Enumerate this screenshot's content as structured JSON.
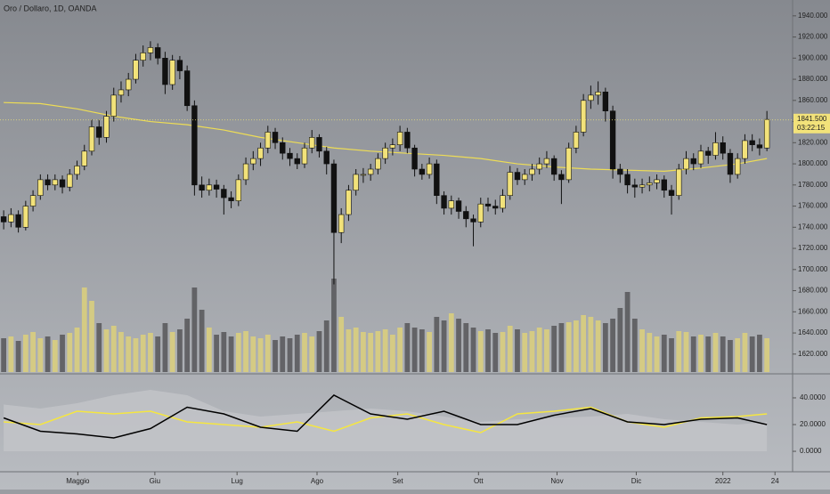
{
  "chart_data": [
    {
      "type": "candlestick",
      "title": "Oro / Dollaro, 1D, OANDA",
      "xlim": [
        -0.5,
        107.5
      ],
      "xticks": [
        {
          "value": 10.1,
          "label": "Maggio"
        },
        {
          "value": 20.6,
          "label": "Giu"
        },
        {
          "value": 31.8,
          "label": "Lug"
        },
        {
          "value": 42.7,
          "label": "Ago"
        },
        {
          "value": 53.7,
          "label": "Set"
        },
        {
          "value": 64.7,
          "label": "Ott"
        },
        {
          "value": 75.4,
          "label": "Nov"
        },
        {
          "value": 86.2,
          "label": "Dic"
        },
        {
          "value": 98,
          "label": "2022"
        },
        {
          "value": 105.1,
          "label": "24"
        }
      ],
      "ylim": [
        1603,
        1955
      ],
      "yticks": [
        {
          "value": 1620,
          "label": "1620.000"
        },
        {
          "value": 1640,
          "label": "1640.000"
        },
        {
          "value": 1660,
          "label": "1660.000"
        },
        {
          "value": 1680,
          "label": "1680.000"
        },
        {
          "value": 1700,
          "label": "1700.000"
        },
        {
          "value": 1720,
          "label": "1720.000"
        },
        {
          "value": 1740,
          "label": "1740.000"
        },
        {
          "value": 1760,
          "label": "1760.000"
        },
        {
          "value": 1780,
          "label": "1780.000"
        },
        {
          "value": 1800,
          "label": "1800.000"
        },
        {
          "value": 1820,
          "label": "1820.000"
        },
        {
          "value": 1840,
          "label": "1840.000"
        },
        {
          "value": 1860,
          "label": "1860.000"
        },
        {
          "value": 1880,
          "label": "1880.000"
        },
        {
          "value": 1900,
          "label": "1900.000"
        },
        {
          "value": 1920,
          "label": "1920.000"
        },
        {
          "value": 1940,
          "label": "1940.000"
        }
      ],
      "up_color": "#f2e27a",
      "down_color": "#111111",
      "candles": [
        [
          1750,
          1756,
          1738,
          1745
        ],
        [
          1745,
          1758,
          1740,
          1752
        ],
        [
          1752,
          1756,
          1735,
          1740
        ],
        [
          1740,
          1765,
          1737,
          1760
        ],
        [
          1760,
          1775,
          1755,
          1770
        ],
        [
          1770,
          1790,
          1766,
          1785
        ],
        [
          1785,
          1790,
          1775,
          1780
        ],
        [
          1780,
          1790,
          1775,
          1785
        ],
        [
          1785,
          1789,
          1772,
          1778
        ],
        [
          1778,
          1795,
          1774,
          1790
        ],
        [
          1790,
          1803,
          1785,
          1798
        ],
        [
          1798,
          1818,
          1794,
          1812
        ],
        [
          1812,
          1842,
          1808,
          1835
        ],
        [
          1835,
          1842,
          1818,
          1825
        ],
        [
          1825,
          1850,
          1820,
          1845
        ],
        [
          1845,
          1872,
          1840,
          1865
        ],
        [
          1865,
          1878,
          1858,
          1870
        ],
        [
          1870,
          1886,
          1864,
          1880
        ],
        [
          1880,
          1904,
          1876,
          1898
        ],
        [
          1898,
          1912,
          1892,
          1905
        ],
        [
          1905,
          1916,
          1898,
          1910
        ],
        [
          1910,
          1914,
          1894,
          1900
        ],
        [
          1900,
          1906,
          1866,
          1875
        ],
        [
          1875,
          1903,
          1870,
          1898
        ],
        [
          1898,
          1902,
          1880,
          1888
        ],
        [
          1888,
          1893,
          1850,
          1855
        ],
        [
          1855,
          1860,
          1770,
          1780
        ],
        [
          1780,
          1788,
          1768,
          1775
        ],
        [
          1775,
          1786,
          1770,
          1780
        ],
        [
          1780,
          1785,
          1768,
          1776
        ],
        [
          1776,
          1780,
          1752,
          1768
        ],
        [
          1768,
          1774,
          1758,
          1765
        ],
        [
          1765,
          1790,
          1760,
          1785
        ],
        [
          1785,
          1806,
          1780,
          1800
        ],
        [
          1800,
          1812,
          1794,
          1805
        ],
        [
          1805,
          1820,
          1798,
          1815
        ],
        [
          1815,
          1836,
          1810,
          1830
        ],
        [
          1830,
          1834,
          1814,
          1820
        ],
        [
          1820,
          1825,
          1804,
          1810
        ],
        [
          1810,
          1815,
          1798,
          1805
        ],
        [
          1805,
          1810,
          1795,
          1800
        ],
        [
          1800,
          1820,
          1796,
          1815
        ],
        [
          1815,
          1832,
          1810,
          1825
        ],
        [
          1825,
          1828,
          1806,
          1812
        ],
        [
          1812,
          1816,
          1790,
          1800
        ],
        [
          1800,
          1804,
          1686,
          1735
        ],
        [
          1735,
          1758,
          1725,
          1752
        ],
        [
          1752,
          1780,
          1746,
          1775
        ],
        [
          1775,
          1795,
          1770,
          1790
        ],
        [
          1790,
          1796,
          1782,
          1790
        ],
        [
          1790,
          1800,
          1784,
          1795
        ],
        [
          1795,
          1810,
          1790,
          1805
        ],
        [
          1805,
          1820,
          1800,
          1815
        ],
        [
          1815,
          1824,
          1808,
          1818
        ],
        [
          1818,
          1836,
          1812,
          1830
        ],
        [
          1830,
          1834,
          1810,
          1815
        ],
        [
          1815,
          1818,
          1788,
          1795
        ],
        [
          1795,
          1800,
          1785,
          1790
        ],
        [
          1790,
          1806,
          1786,
          1800
        ],
        [
          1800,
          1804,
          1762,
          1770
        ],
        [
          1770,
          1774,
          1752,
          1758
        ],
        [
          1758,
          1770,
          1752,
          1765
        ],
        [
          1765,
          1768,
          1748,
          1755
        ],
        [
          1755,
          1760,
          1740,
          1748
        ],
        [
          1748,
          1752,
          1722,
          1745
        ],
        [
          1745,
          1768,
          1740,
          1762
        ],
        [
          1762,
          1768,
          1755,
          1760
        ],
        [
          1760,
          1766,
          1752,
          1758
        ],
        [
          1758,
          1776,
          1754,
          1770
        ],
        [
          1770,
          1798,
          1766,
          1792
        ],
        [
          1792,
          1796,
          1780,
          1785
        ],
        [
          1785,
          1795,
          1780,
          1790
        ],
        [
          1790,
          1800,
          1784,
          1795
        ],
        [
          1795,
          1806,
          1790,
          1800
        ],
        [
          1800,
          1812,
          1796,
          1805
        ],
        [
          1805,
          1808,
          1784,
          1790
        ],
        [
          1790,
          1794,
          1762,
          1785
        ],
        [
          1785,
          1820,
          1782,
          1815
        ],
        [
          1815,
          1836,
          1810,
          1830
        ],
        [
          1830,
          1866,
          1826,
          1860
        ],
        [
          1860,
          1874,
          1852,
          1865
        ],
        [
          1865,
          1878,
          1856,
          1868
        ],
        [
          1868,
          1872,
          1840,
          1850
        ],
        [
          1850,
          1855,
          1786,
          1795
        ],
        [
          1795,
          1800,
          1782,
          1790
        ],
        [
          1790,
          1795,
          1772,
          1780
        ],
        [
          1780,
          1786,
          1768,
          1778
        ],
        [
          1778,
          1786,
          1772,
          1780
        ],
        [
          1780,
          1788,
          1774,
          1782
        ],
        [
          1782,
          1790,
          1776,
          1785
        ],
        [
          1785,
          1789,
          1768,
          1775
        ],
        [
          1775,
          1780,
          1752,
          1770
        ],
        [
          1770,
          1800,
          1766,
          1795
        ],
        [
          1795,
          1812,
          1790,
          1805
        ],
        [
          1805,
          1810,
          1794,
          1800
        ],
        [
          1800,
          1818,
          1796,
          1812
        ],
        [
          1812,
          1816,
          1800,
          1808
        ],
        [
          1808,
          1830,
          1804,
          1820
        ],
        [
          1820,
          1826,
          1804,
          1810
        ],
        [
          1810,
          1814,
          1782,
          1790
        ],
        [
          1790,
          1810,
          1786,
          1805
        ],
        [
          1805,
          1828,
          1800,
          1822
        ],
        [
          1822,
          1828,
          1812,
          1818
        ],
        [
          1818,
          1824,
          1808,
          1815
        ],
        [
          1815,
          1850,
          1812,
          1842
        ]
      ],
      "volume": {
        "vlim": [
          0,
          110
        ],
        "up_color": "#d9ce7e",
        "down_color": "#5b5b5e",
        "values": [
          38,
          40,
          35,
          42,
          45,
          38,
          40,
          36,
          42,
          44,
          50,
          95,
          80,
          55,
          48,
          52,
          45,
          40,
          38,
          42,
          44,
          40,
          55,
          45,
          48,
          60,
          95,
          70,
          50,
          42,
          45,
          40,
          44,
          46,
          40,
          38,
          42,
          36,
          40,
          38,
          42,
          44,
          40,
          46,
          58,
          105,
          62,
          48,
          50,
          45,
          44,
          46,
          48,
          42,
          50,
          55,
          50,
          48,
          45,
          62,
          58,
          66,
          60,
          55,
          50,
          46,
          48,
          44,
          45,
          52,
          48,
          44,
          46,
          50,
          48,
          52,
          55,
          56,
          58,
          64,
          62,
          58,
          55,
          60,
          72,
          90,
          60,
          48,
          44,
          40,
          42,
          38,
          46,
          45,
          40,
          42,
          40,
          44,
          40,
          36,
          38,
          44,
          40,
          42,
          38
        ]
      },
      "ma": {
        "color": "#eedd55",
        "x": [
          0,
          5,
          10,
          15,
          20,
          25,
          30,
          35,
          40,
          45,
          50,
          55,
          60,
          65,
          70,
          75,
          80,
          85,
          90,
          95,
          100,
          104
        ],
        "values": [
          1858,
          1857,
          1852,
          1845,
          1840,
          1837,
          1832,
          1825,
          1820,
          1815,
          1812,
          1810,
          1808,
          1805,
          1800,
          1797,
          1795,
          1794,
          1793,
          1796,
          1800,
          1805
        ]
      },
      "last_price": {
        "value": 1841.5,
        "label": "1841.500",
        "countdown": "03:22:15",
        "color": "#f2e27a"
      }
    },
    {
      "type": "line",
      "xlim": [
        -0.5,
        107.5
      ],
      "ylim": [
        -15.3,
        57.3
      ],
      "yticks": [
        {
          "value": 0,
          "label": "0.0000"
        },
        {
          "value": 20,
          "label": "20.0000"
        },
        {
          "value": 40,
          "label": "40.0000"
        }
      ],
      "x": [
        0,
        5,
        10,
        15,
        20,
        25,
        30,
        35,
        40,
        45,
        50,
        55,
        60,
        65,
        70,
        75,
        80,
        85,
        90,
        95,
        100,
        104
      ],
      "area": {
        "color": "#c4c6ca",
        "values": [
          35,
          32,
          36,
          42,
          46,
          42,
          30,
          26,
          28,
          30,
          32,
          30,
          26,
          22,
          24,
          25,
          26,
          28,
          24,
          22,
          20,
          22
        ]
      },
      "series": [
        {
          "color": "#f5e640",
          "values": [
            22,
            20,
            30,
            28,
            30,
            22,
            20,
            18,
            22,
            15,
            25,
            28,
            20,
            14,
            28,
            30,
            33,
            22,
            18,
            25,
            26,
            28
          ]
        },
        {
          "color": "#000000",
          "values": [
            25,
            15,
            13,
            10,
            17,
            33,
            28,
            18,
            15,
            42,
            28,
            24,
            30,
            20,
            20,
            27,
            32,
            22,
            20,
            24,
            25,
            20
          ]
        }
      ]
    }
  ]
}
